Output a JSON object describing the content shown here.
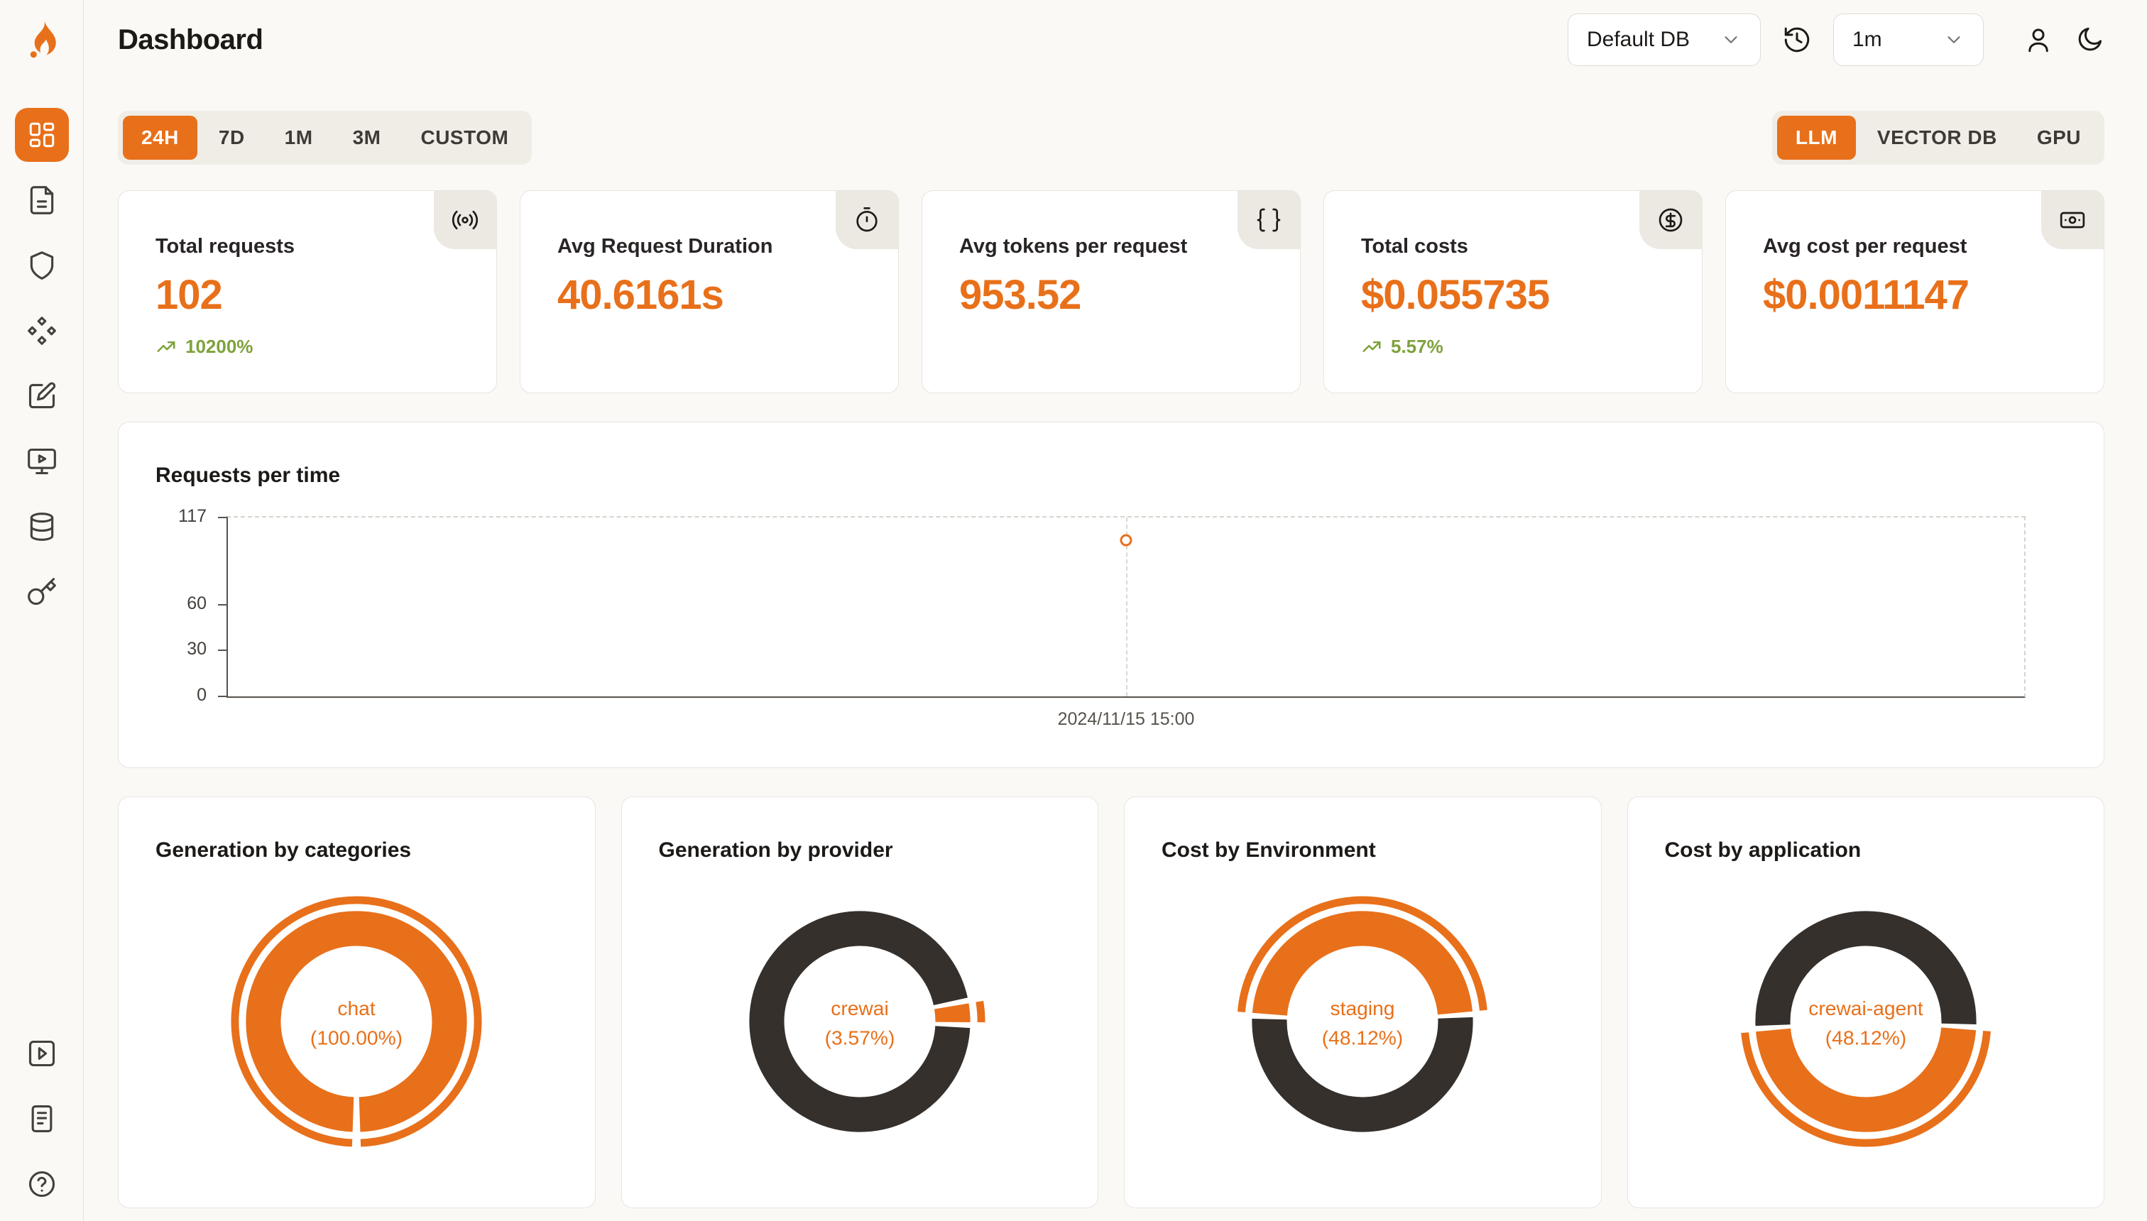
{
  "colors": {
    "accent": "#E8701A",
    "dark_segment": "#35302C",
    "positive": "#7FA23C"
  },
  "header": {
    "title": "Dashboard",
    "db_select": "Default DB",
    "refresh_interval": "1m"
  },
  "sidebar": {
    "items": [
      "dashboard-grid-icon",
      "file-icon",
      "shield-icon",
      "diamonds-icon",
      "square-pen-icon",
      "monitor-play-icon",
      "database-icon",
      "key-icon"
    ],
    "bottom_items": [
      "square-play-icon",
      "document-icon",
      "help-circle-icon"
    ],
    "active_item": "dashboard-grid-icon"
  },
  "filters": {
    "time_ranges": [
      "24H",
      "7D",
      "1M",
      "3M",
      "CUSTOM"
    ],
    "active_time_range": "24H",
    "sources": [
      "LLM",
      "VECTOR DB",
      "GPU"
    ],
    "active_source": "LLM"
  },
  "stats": [
    {
      "label": "Total requests",
      "value": "102",
      "delta": "10200%",
      "icon": "radio-icon"
    },
    {
      "label": "Avg Request Duration",
      "value": "40.6161s",
      "delta": null,
      "icon": "timer-icon"
    },
    {
      "label": "Avg tokens per request",
      "value": "953.52",
      "delta": null,
      "icon": "braces-icon"
    },
    {
      "label": "Total costs",
      "value": "$0.055735",
      "delta": "5.57%",
      "icon": "circle-dollar-icon"
    },
    {
      "label": "Avg cost per request",
      "value": "$0.0011147",
      "delta": null,
      "icon": "banknote-icon"
    }
  ],
  "chart_data": [
    {
      "type": "line",
      "title": "Requests per time",
      "x": [
        "2024/11/15 15:00"
      ],
      "values": [
        102
      ],
      "y_ticks": [
        0,
        30,
        60,
        117
      ],
      "ylim": [
        0,
        117
      ],
      "grid": "dashed-frame",
      "marker": "hollow-circle",
      "legend": "none"
    },
    {
      "type": "donut",
      "title": "Generation by categories",
      "center_label": "chat",
      "center_value": "(100.00%)",
      "segments": [
        {
          "name": "chat",
          "pct": 100.0,
          "color": "accent"
        }
      ],
      "rotation": 90
    },
    {
      "type": "donut",
      "title": "Generation by provider",
      "center_label": "crewai",
      "center_value": "(3.57%)",
      "segments": [
        {
          "name": "crewai",
          "pct": 3.57,
          "color": "accent"
        },
        {
          "name": "other",
          "pct": 96.43,
          "color": "dark"
        }
      ],
      "rotation": -11
    },
    {
      "type": "donut",
      "title": "Cost by Environment",
      "center_label": "staging",
      "center_value": "(48.12%)",
      "segments": [
        {
          "name": "staging",
          "pct": 48.12,
          "color": "accent"
        },
        {
          "name": "other",
          "pct": 51.88,
          "color": "dark"
        }
      ],
      "rotation": -177
    },
    {
      "type": "donut",
      "title": "Cost by application",
      "center_label": "crewai-agent",
      "center_value": "(48.12%)",
      "segments": [
        {
          "name": "crewai-agent",
          "pct": 48.12,
          "color": "accent"
        },
        {
          "name": "other",
          "pct": 51.88,
          "color": "dark"
        }
      ],
      "rotation": 3
    }
  ]
}
